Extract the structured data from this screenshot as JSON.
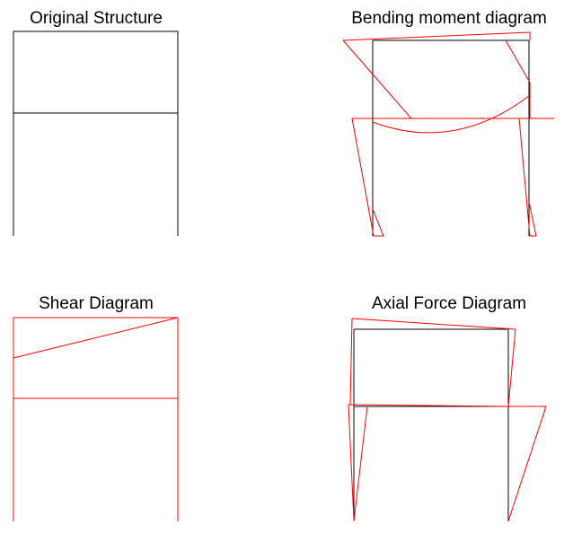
{
  "colors": {
    "structure": "#000000",
    "diagram": "#ff0000",
    "background": "#ffffff"
  },
  "panels": [
    {
      "id": "original",
      "title": "Original Structure"
    },
    {
      "id": "bending",
      "title": "Bending moment diagram"
    },
    {
      "id": "shear",
      "title": "Shear Diagram"
    },
    {
      "id": "axial",
      "title": "Axial Force Diagram"
    }
  ]
}
